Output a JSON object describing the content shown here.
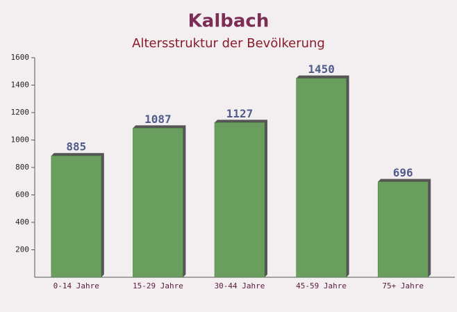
{
  "chart_data": {
    "type": "bar",
    "title": "Kalbach",
    "subtitle": "Altersstruktur der Bevölkerung",
    "categories": [
      "0-14 Jahre",
      "15-29 Jahre",
      "30-44 Jahre",
      "45-59 Jahre",
      "75+ Jahre"
    ],
    "values": [
      885,
      1087,
      1127,
      1450,
      696
    ],
    "color": "#6a9e5f",
    "ylim": [
      0,
      1600
    ],
    "yticks": [
      200,
      400,
      600,
      800,
      1000,
      1200,
      1400,
      1600
    ],
    "grid": false
  }
}
